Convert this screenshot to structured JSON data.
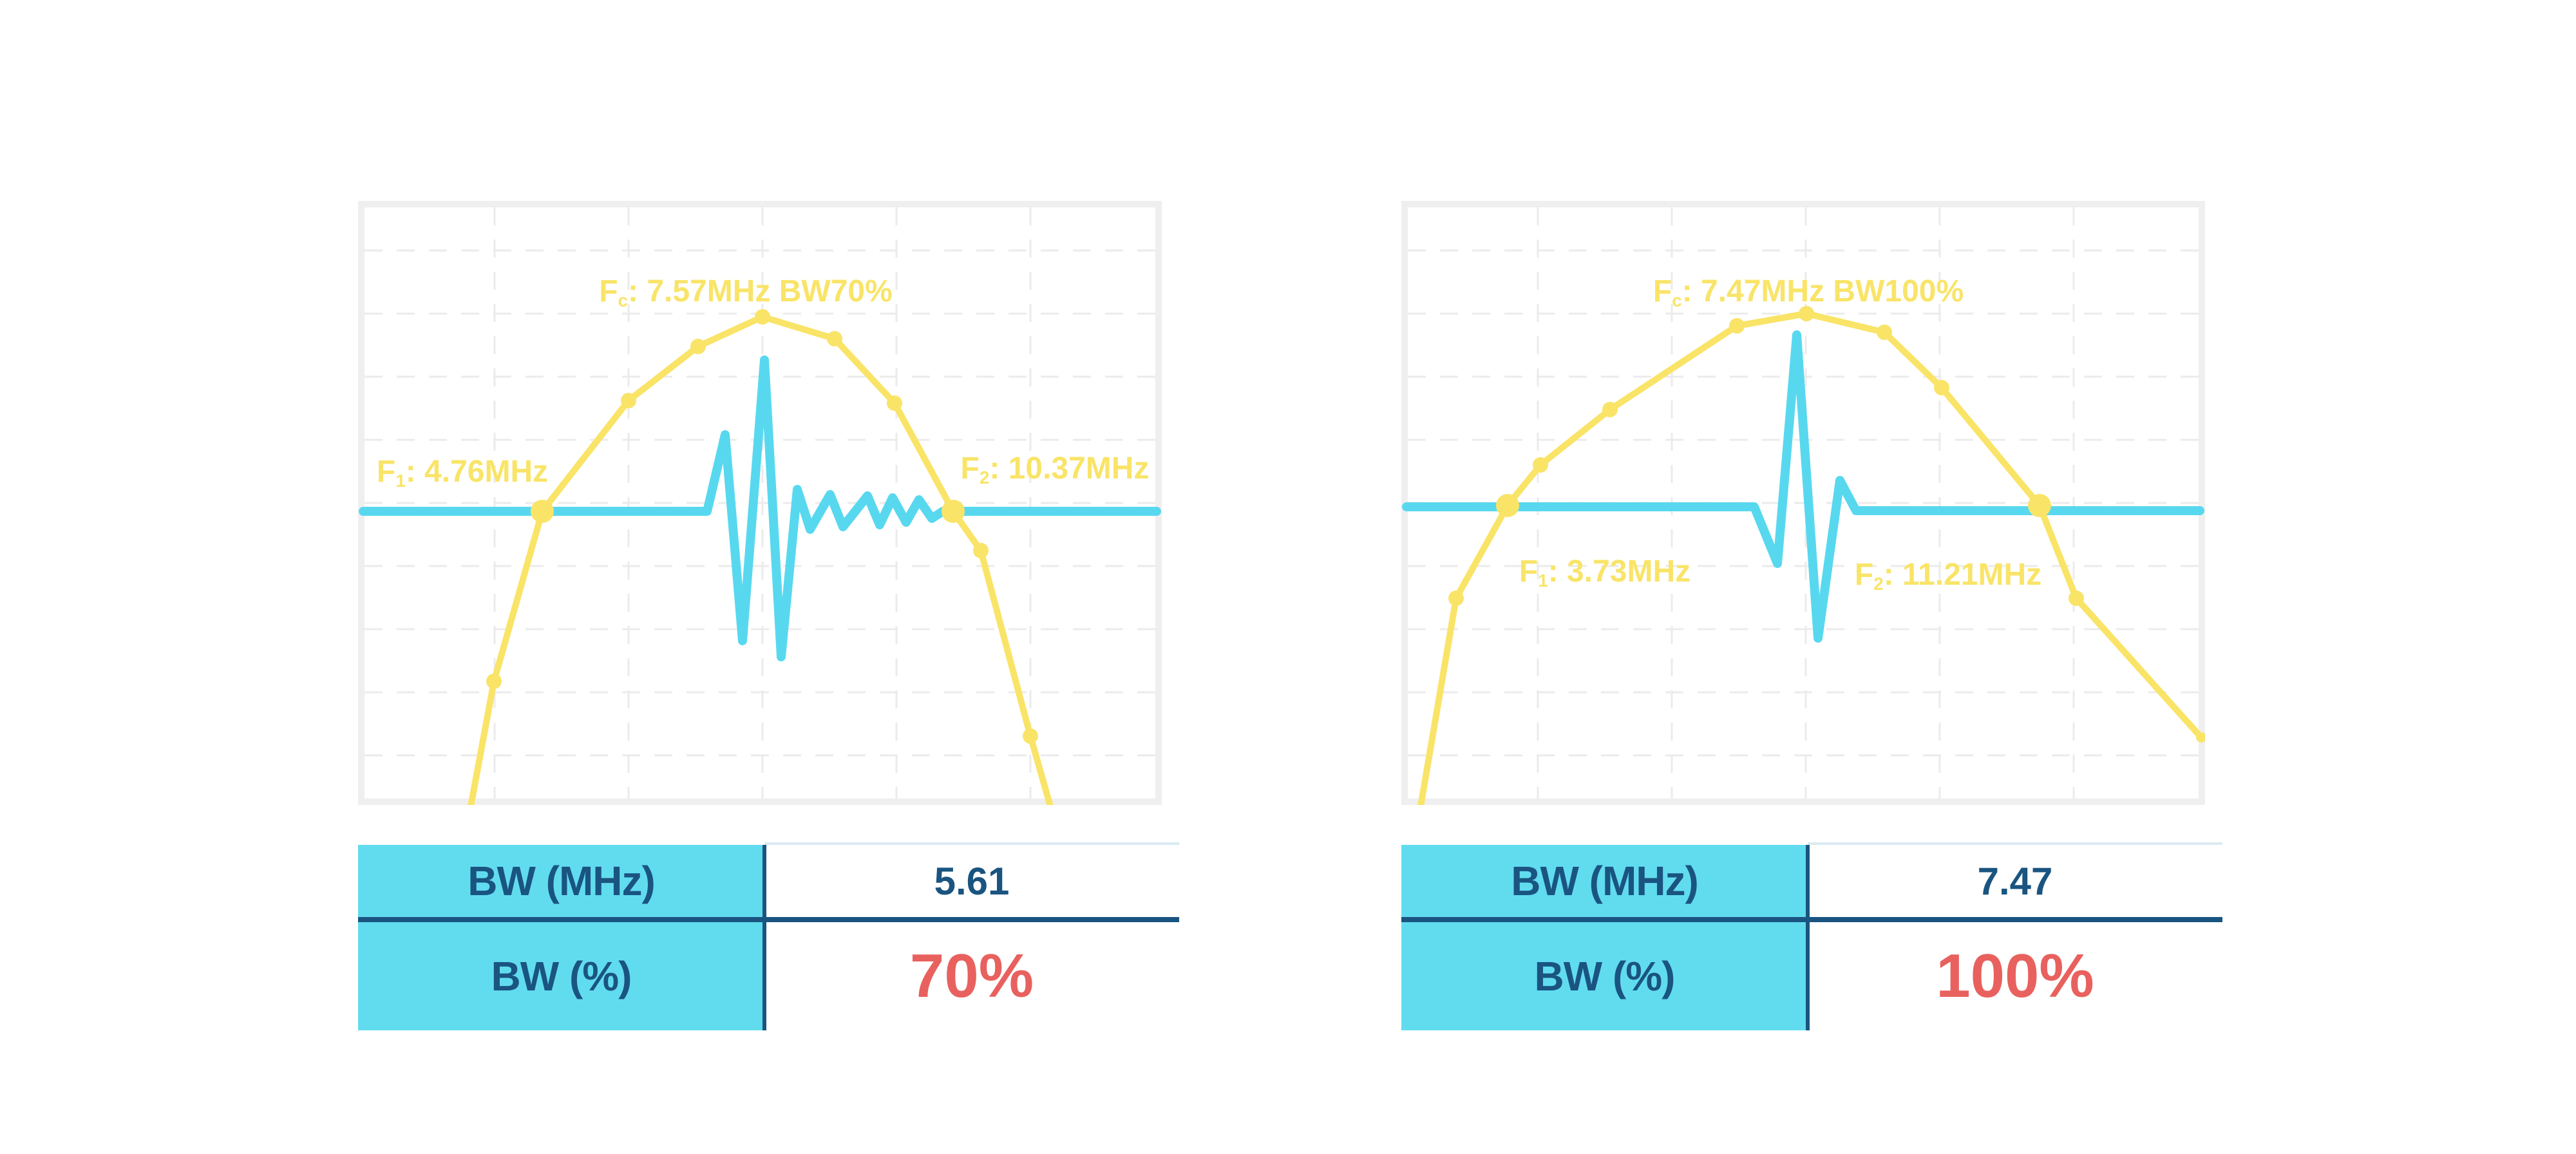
{
  "colors": {
    "yellow": "#F9E468",
    "cyan": "#58D8EF",
    "table_cyan": "#61DCEE",
    "navy": "#1A5480",
    "red": "#E8615E",
    "frame": "#EFEFEF",
    "grid": "#EBEBEB",
    "light_divider": "#D9EAF2",
    "background": "#FFFFFF"
  },
  "layout_hints": {
    "grid_vx": [
      212,
      420,
      628,
      836,
      1044
    ],
    "grid_hy": [
      77,
      175,
      273,
      371,
      469,
      567,
      665,
      763,
      861
    ],
    "marker_radius": {
      "big": 18,
      "dot": 12,
      "small": 8,
      "none": 0
    }
  },
  "panels": [
    {
      "name": "bw-70-percent",
      "labels": {
        "fc": {
          "prefix": "F",
          "sub": "c",
          "text": ": 7.57MHz BW70%"
        },
        "f1": {
          "prefix": "F",
          "sub": "1",
          "text": ": 4.76MHz"
        },
        "f2": {
          "prefix": "F",
          "sub": "2",
          "text": ": 10.37MHz"
        }
      },
      "table": {
        "rows": [
          {
            "label": "BW (MHz)",
            "value": "5.61"
          },
          {
            "label": "BW (%)",
            "value": "70%"
          }
        ]
      },
      "chart_data": {
        "type": "line",
        "title": "Fc: 7.57MHz BW70%",
        "grid": true,
        "legend": "none",
        "annotations": {
          "fc_MHz": 7.57,
          "f1_MHz": 4.76,
          "f2_MHz": 10.37,
          "bw_MHz": 5.61,
          "bw_pct": 70
        },
        "series": [
          {
            "name": "spectrum-envelope",
            "color_key": "yellow",
            "points": [
              [
                175,
                940,
                "none"
              ],
              [
                211,
                746,
                "dot"
              ],
              [
                286,
                482,
                "big"
              ],
              [
                420,
                310,
                "dot"
              ],
              [
                528,
                226,
                "dot"
              ],
              [
                628,
                180,
                "dot"
              ],
              [
                740,
                214,
                "dot"
              ],
              [
                833,
                314,
                "dot"
              ],
              [
                924,
                482,
                "big"
              ],
              [
                967,
                543,
                "dot"
              ],
              [
                1044,
                831,
                "dot"
              ],
              [
                1075,
                940,
                "none"
              ]
            ]
          },
          {
            "name": "pulse-waveform",
            "color_key": "cyan",
            "points": [
              [
                8,
                482
              ],
              [
                542,
                482
              ],
              [
                570,
                363
              ],
              [
                597,
                683
              ],
              [
                631,
                247
              ],
              [
                657,
                708
              ],
              [
                682,
                448
              ],
              [
                702,
                510
              ],
              [
                733,
                456
              ],
              [
                753,
                506
              ],
              [
                791,
                458
              ],
              [
                810,
                503
              ],
              [
                830,
                461
              ],
              [
                851,
                499
              ],
              [
                871,
                464
              ],
              [
                891,
                493
              ],
              [
                908,
                482
              ],
              [
                1240,
                482
              ]
            ]
          }
        ]
      }
    },
    {
      "name": "bw-100-percent",
      "labels": {
        "fc": {
          "prefix": "F",
          "sub": "c",
          "text": ": 7.47MHz BW100%"
        },
        "f1": {
          "prefix": "F",
          "sub": "1",
          "text": ": 3.73MHz"
        },
        "f2": {
          "prefix": "F",
          "sub": "2",
          "text": ": 11.21MHz"
        }
      },
      "table": {
        "rows": [
          {
            "label": "BW (MHz)",
            "value": "7.47"
          },
          {
            "label": "BW (%)",
            "value": "100%"
          }
        ]
      },
      "chart_data": {
        "type": "line",
        "title": "Fc: 7.47MHz BW100%",
        "grid": true,
        "legend": "none",
        "annotations": {
          "fc_MHz": 7.47,
          "f1_MHz": 3.73,
          "f2_MHz": 11.21,
          "bw_MHz": 7.47,
          "bw_pct": 100
        },
        "series": [
          {
            "name": "spectrum-envelope",
            "color_key": "yellow",
            "points": [
              [
                30,
                940,
                "none"
              ],
              [
                85,
                617,
                "dot"
              ],
              [
                165,
                473,
                "big"
              ],
              [
                216,
                410,
                "dot"
              ],
              [
                324,
                324,
                "dot"
              ],
              [
                521,
                194,
                "dot"
              ],
              [
                629,
                175,
                "dot"
              ],
              [
                750,
                204,
                "dot"
              ],
              [
                839,
                290,
                "dot"
              ],
              [
                991,
                473,
                "big"
              ],
              [
                1048,
                617,
                "dot"
              ],
              [
                1242,
                833,
                "small"
              ]
            ]
          },
          {
            "name": "pulse-waveform",
            "color_key": "cyan",
            "points": [
              [
                8,
                475
              ],
              [
                548,
                475
              ],
              [
                584,
                563
              ],
              [
                614,
                208
              ],
              [
                647,
                679
              ],
              [
                681,
                434
              ],
              [
                706,
                481
              ],
              [
                1240,
                481
              ]
            ]
          }
        ]
      }
    }
  ]
}
